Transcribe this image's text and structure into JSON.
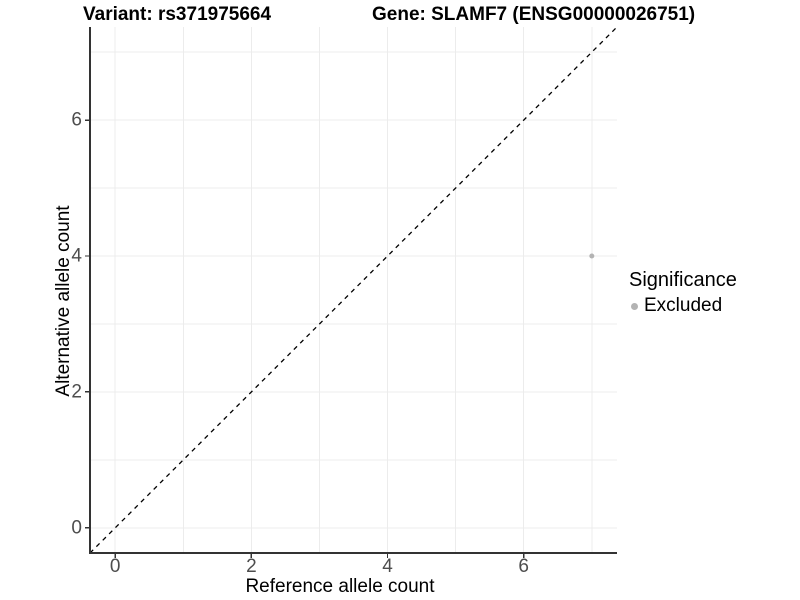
{
  "chart_data": {
    "type": "scatter",
    "titles": {
      "left": "Variant: rs371975664",
      "right": "Gene: SLAMF7 (ENSG00000026751)"
    },
    "xlabel": "Reference allele count",
    "ylabel": "Alternative allele count",
    "xlim": [
      -0.37,
      7.37
    ],
    "ylim": [
      -0.37,
      7.37
    ],
    "x_ticks": [
      0,
      2,
      4,
      6
    ],
    "y_ticks": [
      0,
      2,
      4,
      6
    ],
    "grid": {
      "show": true,
      "from": 0,
      "to": 7,
      "every": 1,
      "color": "#ececec"
    },
    "reference_line": {
      "kind": "identity y=x",
      "dashed": true,
      "color": "#000000"
    },
    "series": [
      {
        "name": "Excluded",
        "color": "#b3b3b3",
        "point_radius": 2.5,
        "points": [
          {
            "x": 7,
            "y": 4
          }
        ]
      }
    ],
    "legend": {
      "title": "Significance",
      "position": "right",
      "items": [
        {
          "label": "Excluded",
          "color": "#b3b3b3"
        }
      ]
    },
    "axis_style": {
      "line_color": "#333333",
      "tick_color": "#333333",
      "tick_label_color": "#4d4d4d"
    }
  }
}
